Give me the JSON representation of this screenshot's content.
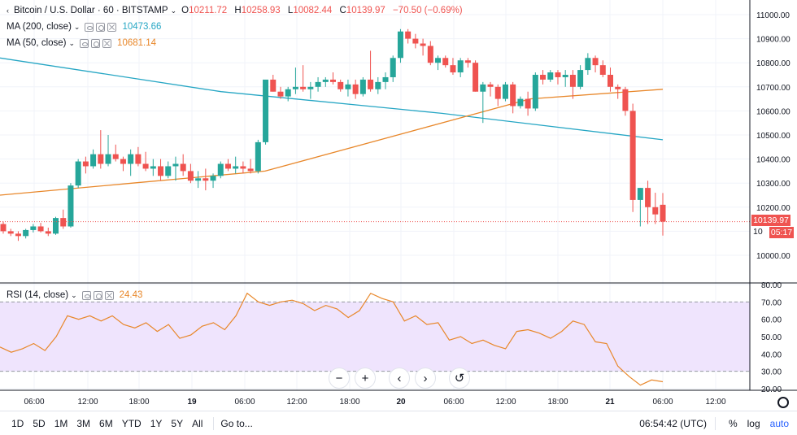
{
  "header": {
    "symbol_title": "Bitcoin / U.S. Dollar · 60 · BITSTAMP",
    "open_label": "O",
    "open": "10211.72",
    "high_label": "H",
    "high": "10258.93",
    "low_label": "L",
    "low": "10082.44",
    "close_label": "C",
    "close": "10139.97",
    "change": "−70.50 (−0.69%)"
  },
  "indicators": {
    "ma200": {
      "label": "MA (200, close)",
      "value": "10473.66",
      "color": "#26a6c4"
    },
    "ma50": {
      "label": "MA (50, close)",
      "value": "10681.14",
      "color": "#e8872a"
    },
    "rsi": {
      "label": "RSI (14, close)",
      "value": "24.43",
      "color": "#e8872a"
    }
  },
  "price_labels": {
    "last_price": "10139.97",
    "countdown": "05:17",
    "partial_label": "10"
  },
  "navigation": {
    "zoom_out": "−",
    "zoom_in": "+",
    "scroll_left": "‹",
    "scroll_right": "›",
    "reset": "↺"
  },
  "bottombar": {
    "timeframes": [
      "1D",
      "5D",
      "1M",
      "3M",
      "6M",
      "YTD",
      "1Y",
      "5Y",
      "All"
    ],
    "goto": "Go to...",
    "clock": "06:54:42 (UTC)",
    "percent": "%",
    "log": "log",
    "auto": "auto"
  },
  "colors": {
    "up": "#26a69a",
    "down": "#ef5350",
    "rsi_band": "#efe4fd",
    "grid": "#f0f3fa"
  },
  "chart_data": [
    {
      "type": "candlestick",
      "ylim": [
        10000,
        11000
      ],
      "yticks": [
        "11000.00",
        "10900.00",
        "10800.00",
        "10700.00",
        "10600.00",
        "10500.00",
        "10400.00",
        "10300.00",
        "10200.00",
        "10100.00",
        "10000.00"
      ],
      "xticks": [
        "06:00",
        "12:00",
        "18:00",
        "19",
        "06:00",
        "12:00",
        "18:00",
        "20",
        "06:00",
        "12:00",
        "18:00",
        "21",
        "06:00",
        "12:00"
      ],
      "candles": [
        [
          10130,
          10140,
          10090,
          10100
        ],
        [
          10100,
          10110,
          10080,
          10090
        ],
        [
          10090,
          10100,
          10060,
          10080
        ],
        [
          10080,
          10110,
          10070,
          10105
        ],
        [
          10105,
          10130,
          10095,
          10120
        ],
        [
          10120,
          10135,
          10095,
          10100
        ],
        [
          10100,
          10115,
          10080,
          10090
        ],
        [
          10090,
          10160,
          10085,
          10155
        ],
        [
          10155,
          10190,
          10110,
          10120
        ],
        [
          10120,
          10300,
          10115,
          10290
        ],
        [
          10290,
          10400,
          10280,
          10390
        ],
        [
          10390,
          10410,
          10340,
          10370
        ],
        [
          10370,
          10440,
          10360,
          10420
        ],
        [
          10420,
          10520,
          10360,
          10380
        ],
        [
          10380,
          10500,
          10370,
          10420
        ],
        [
          10420,
          10460,
          10390,
          10400
        ],
        [
          10400,
          10410,
          10350,
          10380
        ],
        [
          10380,
          10440,
          10330,
          10420
        ],
        [
          10420,
          10450,
          10370,
          10380
        ],
        [
          10380,
          10430,
          10350,
          10360
        ],
        [
          10360,
          10400,
          10330,
          10370
        ],
        [
          10370,
          10400,
          10310,
          10330
        ],
        [
          10330,
          10390,
          10320,
          10370
        ],
        [
          10370,
          10410,
          10310,
          10380
        ],
        [
          10380,
          10420,
          10330,
          10350
        ],
        [
          10350,
          10380,
          10300,
          10310
        ],
        [
          10310,
          10350,
          10280,
          10320
        ],
        [
          10320,
          10360,
          10270,
          10310
        ],
        [
          10310,
          10340,
          10280,
          10330
        ],
        [
          10330,
          10390,
          10320,
          10380
        ],
        [
          10380,
          10400,
          10350,
          10360
        ],
        [
          10360,
          10410,
          10340,
          10370
        ],
        [
          10370,
          10390,
          10340,
          10360
        ],
        [
          10360,
          10400,
          10340,
          10350
        ],
        [
          10350,
          10480,
          10340,
          10470
        ],
        [
          10470,
          10720,
          10460,
          10730
        ],
        [
          10730,
          10750,
          10680,
          10680
        ],
        [
          10680,
          10700,
          10650,
          10660
        ],
        [
          10660,
          10700,
          10640,
          10690
        ],
        [
          10690,
          10780,
          10670,
          10700
        ],
        [
          10700,
          10790,
          10680,
          10690
        ],
        [
          10690,
          10720,
          10650,
          10700
        ],
        [
          10700,
          10740,
          10680,
          10720
        ],
        [
          10720,
          10740,
          10700,
          10730
        ],
        [
          10730,
          10760,
          10710,
          10720
        ],
        [
          10720,
          10730,
          10680,
          10690
        ],
        [
          10690,
          10730,
          10660,
          10710
        ],
        [
          10710,
          10730,
          10650,
          10670
        ],
        [
          10670,
          10740,
          10660,
          10730
        ],
        [
          10730,
          10850,
          10680,
          10690
        ],
        [
          10690,
          10740,
          10670,
          10720
        ],
        [
          10720,
          10760,
          10690,
          10740
        ],
        [
          10740,
          10830,
          10720,
          10820
        ],
        [
          10820,
          10940,
          10800,
          10930
        ],
        [
          10930,
          10940,
          10880,
          10900
        ],
        [
          10900,
          10920,
          10860,
          10880
        ],
        [
          10880,
          10900,
          10830,
          10870
        ],
        [
          10870,
          10890,
          10790,
          10800
        ],
        [
          10800,
          10830,
          10770,
          10820
        ],
        [
          10820,
          10830,
          10780,
          10790
        ],
        [
          10790,
          10820,
          10750,
          10760
        ],
        [
          10760,
          10820,
          10740,
          10810
        ],
        [
          10810,
          10820,
          10780,
          10800
        ],
        [
          10800,
          10810,
          10680,
          10680
        ],
        [
          10680,
          10720,
          10550,
          10710
        ],
        [
          10710,
          10720,
          10660,
          10700
        ],
        [
          10700,
          10710,
          10620,
          10650
        ],
        [
          10650,
          10720,
          10640,
          10710
        ],
        [
          10710,
          10720,
          10590,
          10620
        ],
        [
          10620,
          10660,
          10610,
          10650
        ],
        [
          10650,
          10680,
          10580,
          10610
        ],
        [
          10610,
          10760,
          10600,
          10750
        ],
        [
          10750,
          10770,
          10710,
          10730
        ],
        [
          10730,
          10770,
          10720,
          10760
        ],
        [
          10760,
          10770,
          10710,
          10740
        ],
        [
          10740,
          10770,
          10700,
          10750
        ],
        [
          10750,
          10770,
          10650,
          10700
        ],
        [
          10700,
          10790,
          10690,
          10770
        ],
        [
          10770,
          10840,
          10750,
          10820
        ],
        [
          10820,
          10830,
          10760,
          10790
        ],
        [
          10790,
          10810,
          10740,
          10750
        ],
        [
          10750,
          10780,
          10680,
          10700
        ],
        [
          10700,
          10710,
          10650,
          10690
        ],
        [
          10690,
          10700,
          10580,
          10600
        ],
        [
          10600,
          10630,
          10180,
          10230
        ],
        [
          10230,
          10280,
          10120,
          10280
        ],
        [
          10280,
          10310,
          10130,
          10200
        ],
        [
          10200,
          10260,
          10130,
          10170
        ],
        [
          10210,
          10259,
          10082,
          10140
        ]
      ],
      "ma200": [
        10820,
        10680,
        10590,
        10480
      ],
      "ma50": [
        10250,
        10300,
        10350,
        10500,
        10650,
        10690
      ]
    },
    {
      "type": "line",
      "title": "RSI (14, close)",
      "ylim": [
        20,
        80
      ],
      "yticks": [
        "80.00",
        "70.00",
        "60.00",
        "50.00",
        "40.00",
        "30.00",
        "20.00"
      ],
      "band": [
        30,
        70
      ],
      "values": [
        44,
        41,
        43,
        46,
        42,
        50,
        62,
        60,
        62,
        59,
        62,
        57,
        55,
        58,
        53,
        57,
        49,
        51,
        56,
        58,
        54,
        62,
        75,
        70,
        68,
        70,
        71,
        69,
        65,
        68,
        66,
        61,
        65,
        75,
        72,
        70,
        59,
        62,
        57,
        58,
        48,
        50,
        46,
        48,
        45,
        43,
        53,
        54,
        52,
        49,
        53,
        59,
        57,
        47,
        46,
        33,
        27,
        22,
        25,
        24
      ]
    }
  ]
}
